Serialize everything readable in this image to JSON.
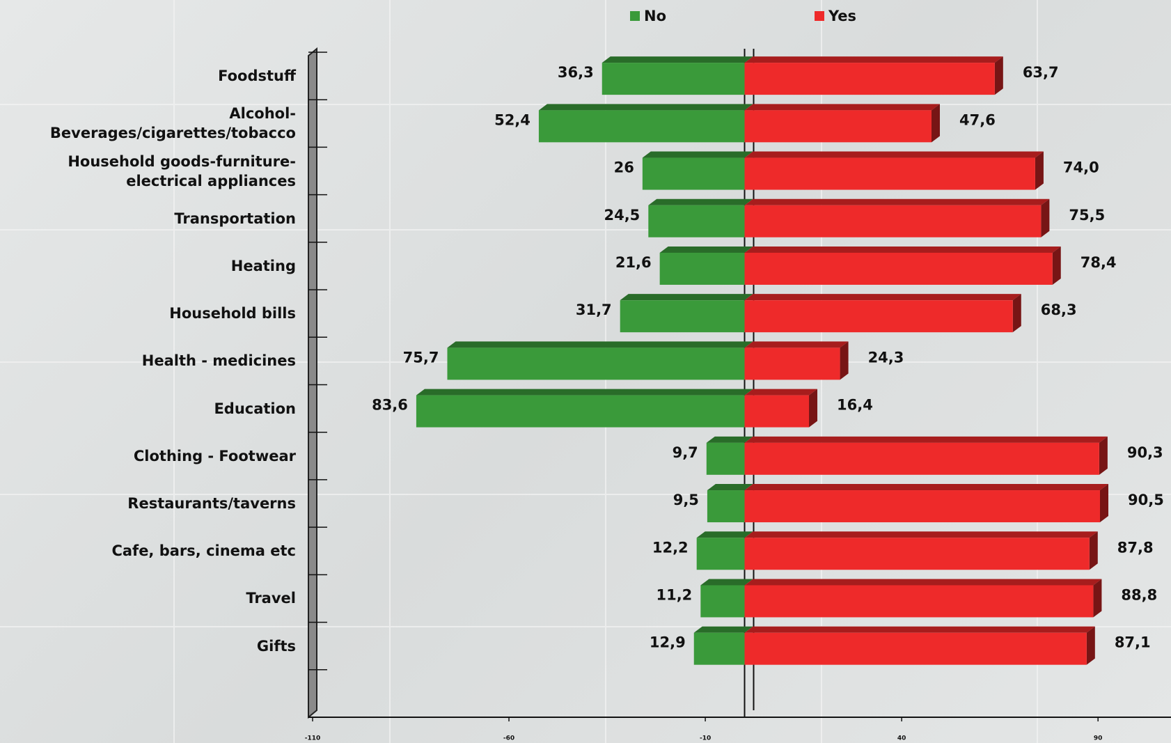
{
  "chart_data": {
    "type": "bar",
    "orientation": "horizontal",
    "categories": [
      "Foodstuff",
      "Alcohol-\nBeverages/cigarettes/tobacco",
      "Household goods-furniture-\nelectrical appliances",
      "Transportation",
      "Heating",
      "Household bills",
      "Health - medicines",
      "Education",
      "Clothing - Footwear",
      "Restaurants/taverns",
      "Cafe, bars, cinema etc",
      "Travel",
      "Gifts"
    ],
    "series": [
      {
        "name": "No",
        "color": "#3a9a3a",
        "values": [
          -36.3,
          -52.4,
          -26,
          -24.5,
          -21.6,
          -31.7,
          -75.7,
          -83.6,
          -9.7,
          -9.5,
          -12.2,
          -11.2,
          -12.9
        ],
        "value_labels": [
          "36,3",
          "52,4",
          "26",
          "24,5",
          "21,6",
          "31,7",
          "75,7",
          "83,6",
          "9,7",
          "9,5",
          "12,2",
          "11,2",
          "12,9"
        ]
      },
      {
        "name": "Yes",
        "color": "#ee2a2a",
        "values": [
          63.7,
          47.6,
          74.0,
          75.5,
          78.4,
          68.3,
          24.3,
          16.4,
          90.3,
          90.5,
          87.8,
          88.8,
          87.1
        ],
        "value_labels": [
          "63,7",
          "47,6",
          "74,0",
          "75,5",
          "78,4",
          "68,3",
          "24,3",
          "16,4",
          "90,3",
          "90,5",
          "87,8",
          "88,8",
          "87,1"
        ]
      }
    ],
    "xlim": [
      -110,
      110
    ],
    "xticks": [
      -110,
      -60,
      -10,
      40,
      90
    ],
    "legend": "top"
  }
}
